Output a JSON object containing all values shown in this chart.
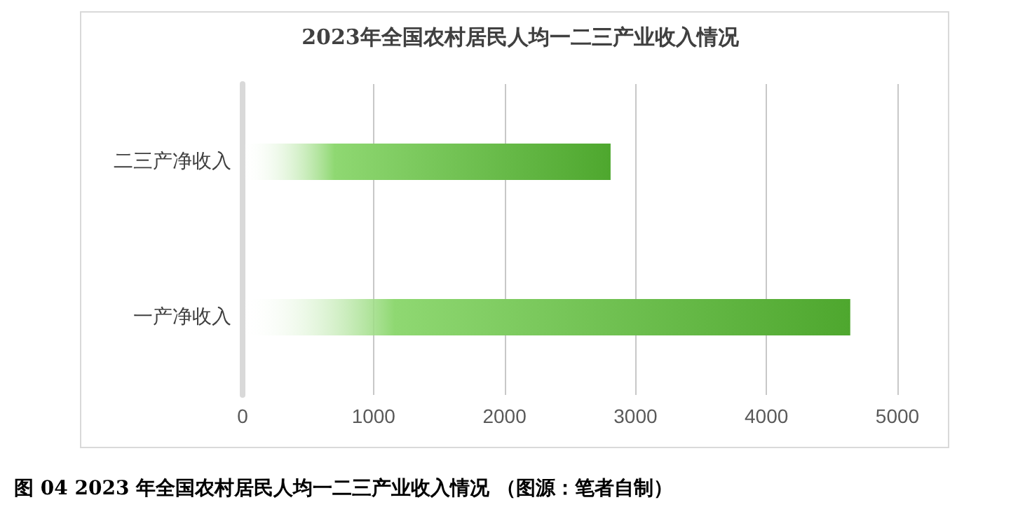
{
  "chart_data": {
    "type": "bar",
    "orientation": "horizontal",
    "title": "2023年全国农村居民人均一二三产业收入情况",
    "categories": [
      "二三产净收入",
      "一产净收入"
    ],
    "values": [
      2810,
      4640
    ],
    "color": "#4ea72e",
    "xlim": [
      0,
      5000
    ],
    "xticks": [
      0,
      1000,
      2000,
      3000,
      4000,
      5000
    ],
    "grid": "x",
    "annotations": [
      "图 04  2023 年全国农村居民人均一二三产业收入情况 （图源：笔者自制）"
    ]
  }
}
